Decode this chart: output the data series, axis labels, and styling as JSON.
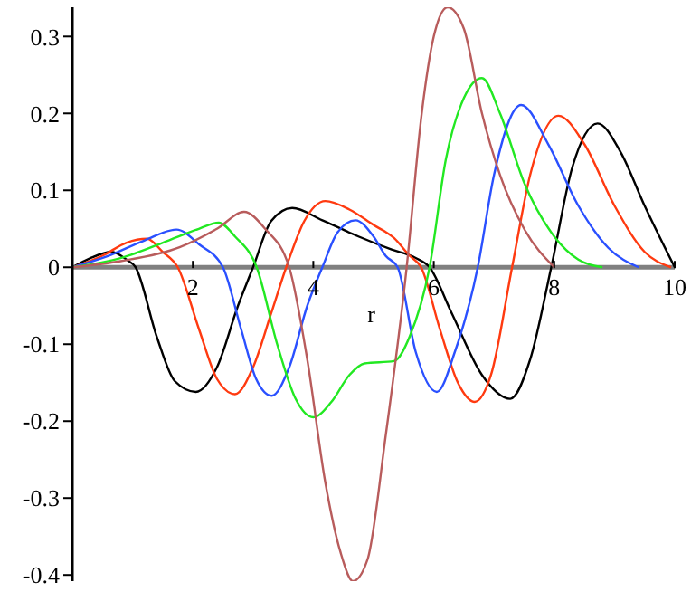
{
  "chart_data": {
    "type": "line",
    "xlabel": "r",
    "xlim": [
      0,
      10
    ],
    "xticks": [
      2,
      4,
      6,
      8,
      10
    ],
    "ylim": [
      -0.408,
      0.338
    ],
    "yticks": [
      -0.4,
      -0.3,
      -0.2,
      -0.1,
      0,
      0.1,
      0.2,
      0.3
    ],
    "marker": "none",
    "line_style": "solid",
    "series": [
      {
        "color": "#000000",
        "x": [
          0,
          0.3,
          0.65,
          0.9,
          1.05,
          1.4,
          1.7,
          2.05,
          2.4,
          2.75,
          3.0,
          3.3,
          3.65,
          4.15,
          4.75,
          5.3,
          5.7,
          5.93,
          6.3,
          6.8,
          7.27,
          7.6,
          7.95,
          8.3,
          8.72,
          9.1,
          9.5,
          10
        ],
        "values": [
          0,
          0.012,
          0.02,
          0.01,
          0,
          -0.09,
          -0.148,
          -0.162,
          -0.13,
          -0.05,
          0,
          0.06,
          0.077,
          0.061,
          0.04,
          0.023,
          0.012,
          0,
          -0.06,
          -0.14,
          -0.171,
          -0.12,
          0,
          0.13,
          0.187,
          0.15,
          0.08,
          0
        ]
      },
      {
        "color": "#ff3a10",
        "x": [
          0,
          0.5,
          0.9,
          1.24,
          1.5,
          1.75,
          2.1,
          2.4,
          2.7,
          3.0,
          3.3,
          3.55,
          3.85,
          4.2,
          4.6,
          5.0,
          5.34,
          5.6,
          5.79,
          6.1,
          6.4,
          6.68,
          6.95,
          7.3,
          7.6,
          8.07,
          8.5,
          9.0,
          9.5,
          9.94
        ],
        "values": [
          0,
          0.015,
          0.032,
          0.037,
          0.02,
          0,
          -0.08,
          -0.145,
          -0.165,
          -0.13,
          -0.06,
          0,
          0.06,
          0.086,
          0.075,
          0.055,
          0.038,
          0.015,
          0,
          -0.08,
          -0.15,
          -0.175,
          -0.14,
          0,
          0.12,
          0.197,
          0.16,
          0.08,
          0.02,
          0
        ]
      },
      {
        "color": "#2a50ff",
        "x": [
          0,
          0.6,
          1.2,
          1.73,
          2.1,
          2.5,
          2.8,
          3.05,
          3.31,
          3.6,
          3.9,
          4.15,
          4.4,
          4.7,
          5.0,
          5.2,
          5.4,
          5.7,
          6.05,
          6.35,
          6.73,
          7.0,
          7.45,
          7.9,
          8.4,
          8.9,
          9.4
        ],
        "values": [
          0,
          0.015,
          0.035,
          0.049,
          0.03,
          0,
          -0.08,
          -0.145,
          -0.167,
          -0.13,
          -0.05,
          0,
          0.045,
          0.061,
          0.04,
          0.015,
          0,
          -0.11,
          -0.162,
          -0.11,
          0,
          0.12,
          0.211,
          0.16,
          0.08,
          0.025,
          0
        ]
      },
      {
        "color": "#22e822",
        "x": [
          0,
          0.8,
          1.6,
          2.1,
          2.43,
          2.7,
          3.06,
          3.4,
          3.7,
          4.0,
          4.3,
          4.6,
          4.85,
          5.34,
          5.6,
          5.93,
          6.2,
          6.5,
          6.8,
          7.1,
          7.5,
          8.0,
          8.4,
          8.8
        ],
        "values": [
          0,
          0.012,
          0.035,
          0.05,
          0.058,
          0.04,
          0,
          -0.1,
          -0.17,
          -0.195,
          -0.175,
          -0.14,
          -0.125,
          -0.122,
          -0.09,
          0,
          0.14,
          0.22,
          0.246,
          0.2,
          0.11,
          0.04,
          0.01,
          0
        ]
      },
      {
        "color": "#b85c5c",
        "x": [
          0,
          0.8,
          1.78,
          2.4,
          2.85,
          3.2,
          3.6,
          3.9,
          4.2,
          4.45,
          4.66,
          4.9,
          5.2,
          5.55,
          5.8,
          6.0,
          6.23,
          6.5,
          6.8,
          7.1,
          7.5,
          8.0
        ],
        "values": [
          0,
          0.008,
          0.026,
          0.05,
          0.072,
          0.05,
          0,
          -0.12,
          -0.28,
          -0.37,
          -0.408,
          -0.38,
          -0.22,
          0,
          0.2,
          0.3,
          0.338,
          0.31,
          0.2,
          0.12,
          0.05,
          0
        ]
      }
    ]
  }
}
